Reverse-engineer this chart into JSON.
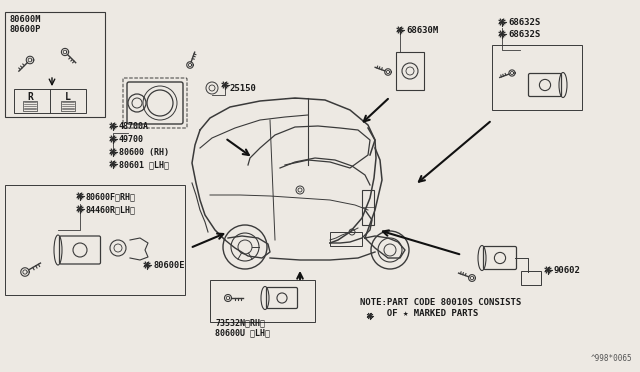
{
  "bg_color": "#ede9e3",
  "ref_code": "^998*0065",
  "note_line1": "NOTE:PART CODE 80010S CONSISTS",
  "note_line2": "     OF ★ MARKED PARTS",
  "labels": {
    "tl_box": [
      "80600M",
      "80600P"
    ],
    "ignition": [
      "48700A",
      "49700",
      "80600 (RH)",
      "80601 〈LH〉"
    ],
    "ignition_small": "25150",
    "door": [
      "80600F〈RH〉",
      "84460R〈LH〉",
      "80600E"
    ],
    "bottom_ctr": [
      "73532N〈RH〉",
      "80600U 〈LH〉"
    ],
    "fuel": "68630M",
    "glove": [
      "68632S",
      "68632S"
    ],
    "trunk": "90602"
  },
  "colors": {
    "line": "#3a3a3a",
    "bg": "#ede9e3",
    "text": "#1a1a1a",
    "arrow": "#111111",
    "box": "#3a3a3a"
  },
  "arrows": [
    [
      220,
      135,
      258,
      152
    ],
    [
      310,
      195,
      303,
      225
    ],
    [
      245,
      218,
      220,
      248
    ],
    [
      335,
      100,
      310,
      130
    ],
    [
      382,
      130,
      360,
      163
    ],
    [
      450,
      220,
      408,
      230
    ],
    [
      300,
      280,
      300,
      305
    ]
  ]
}
